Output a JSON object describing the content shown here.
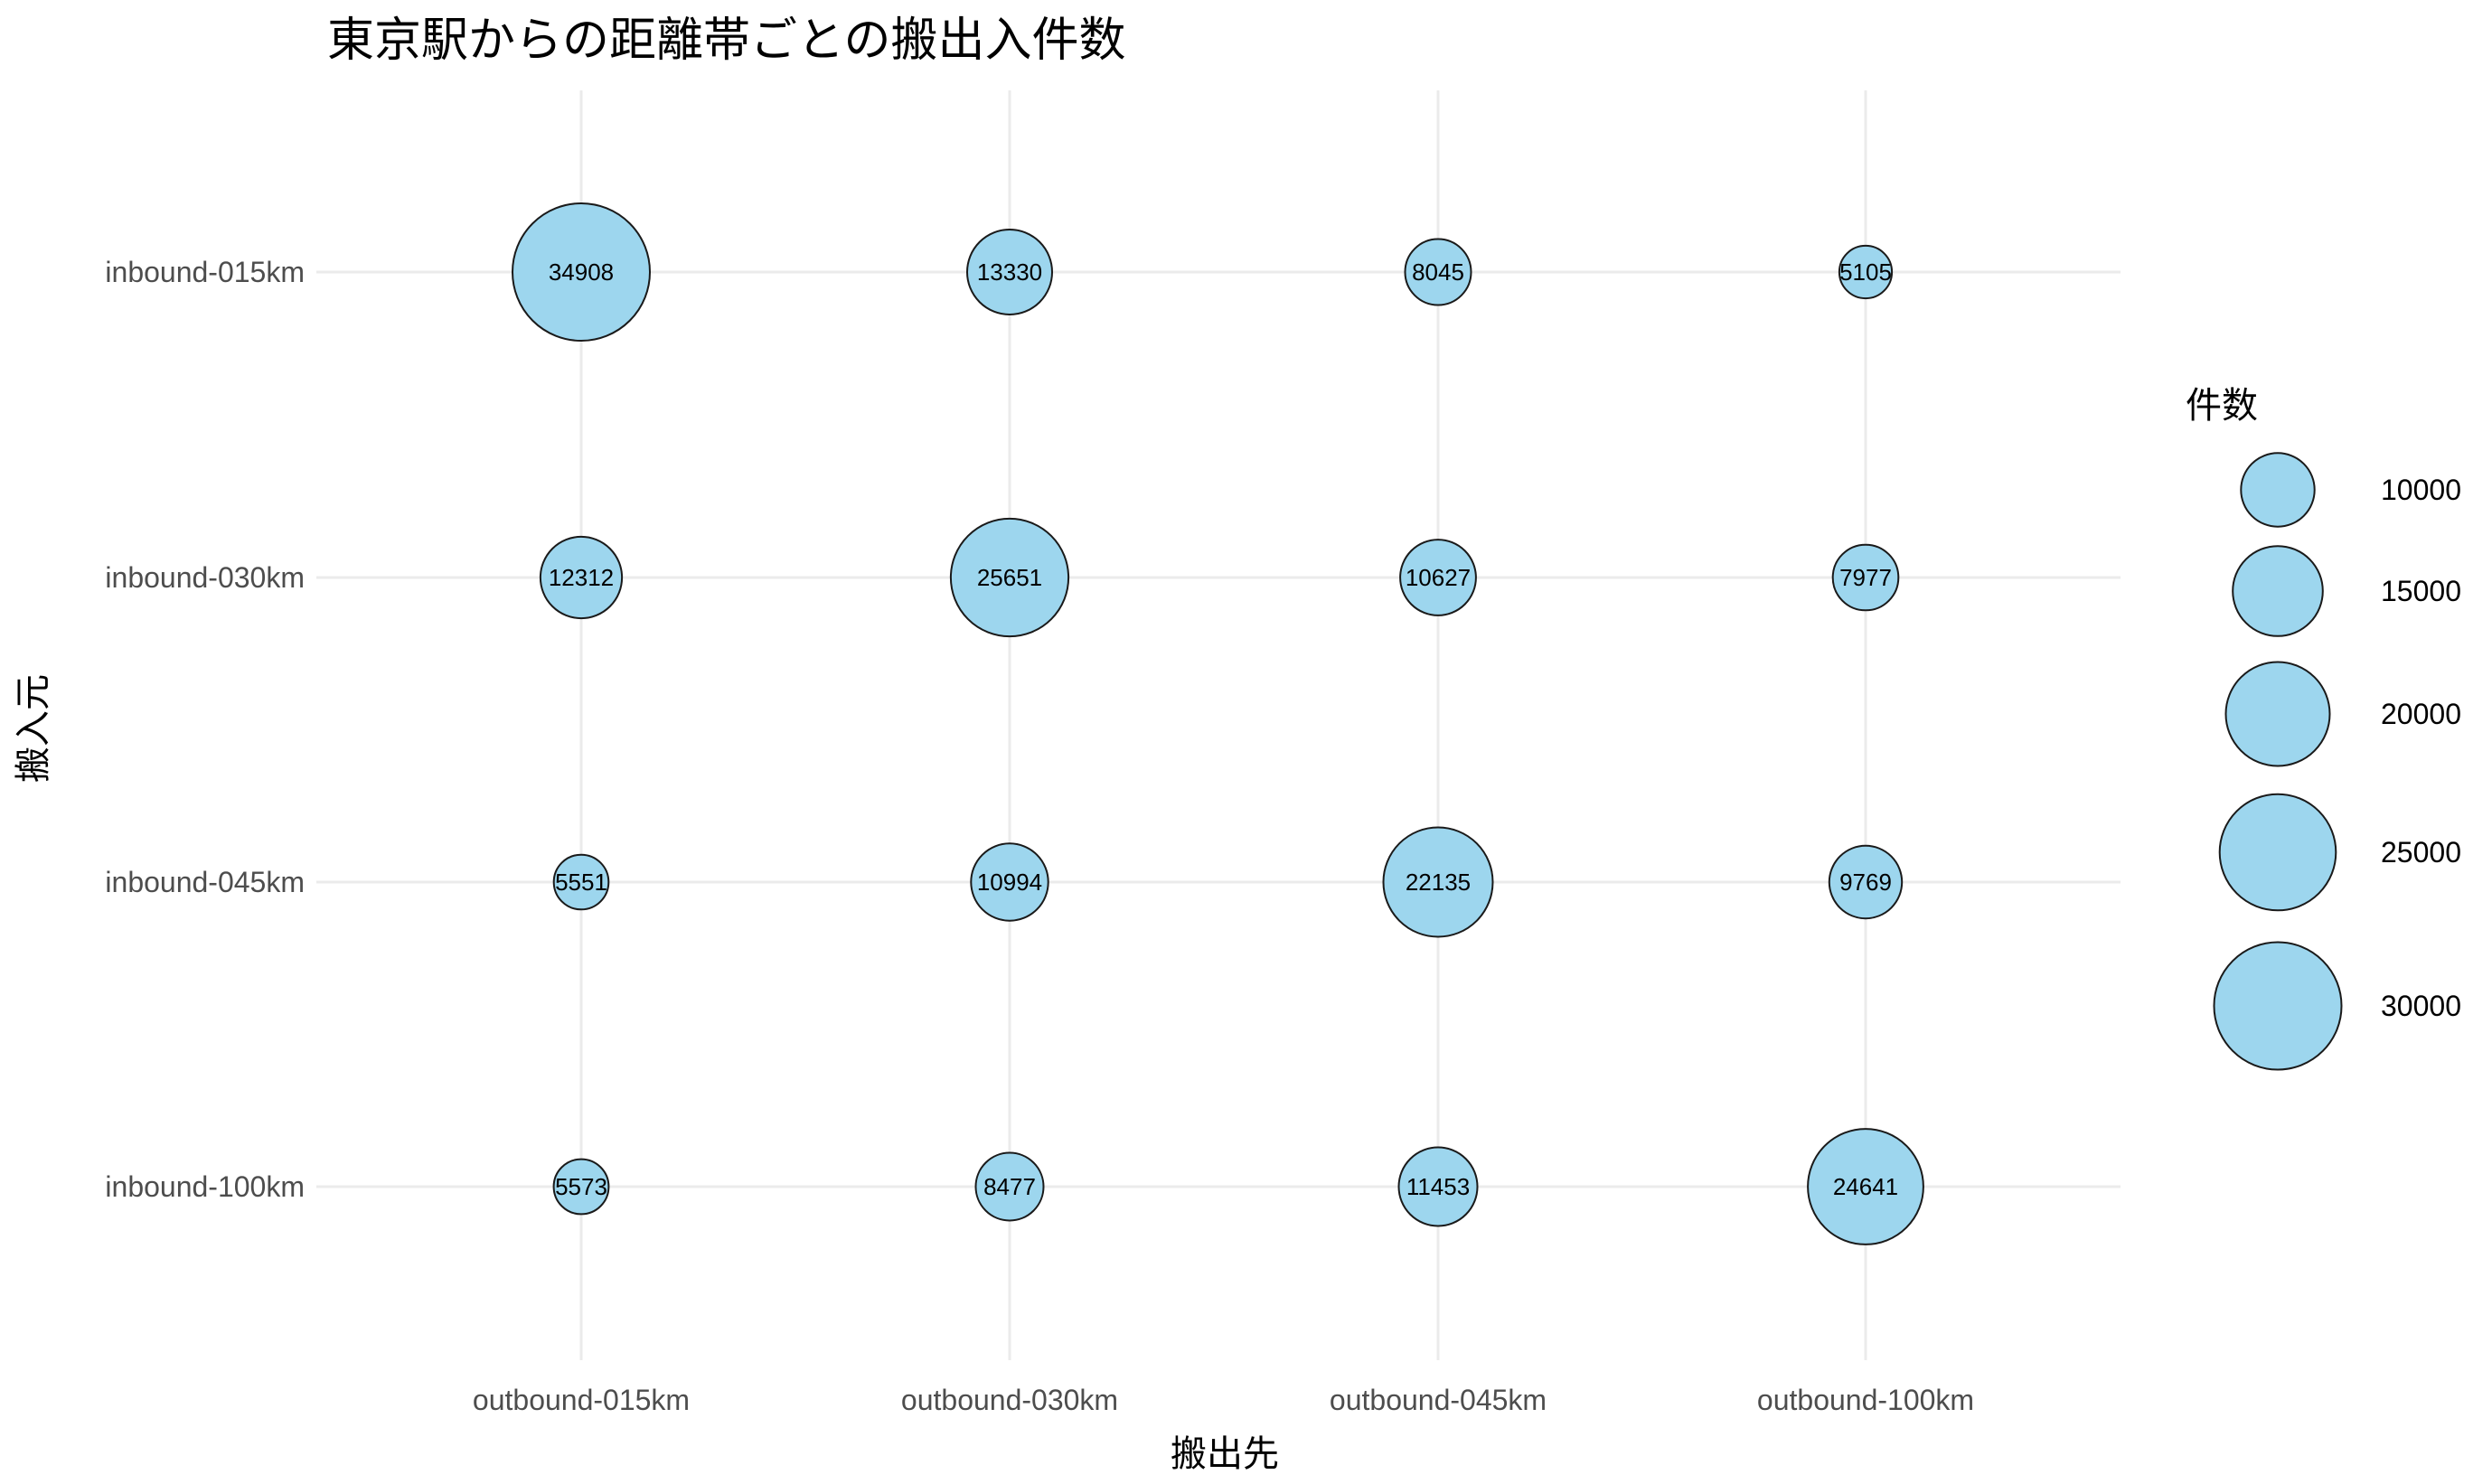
{
  "chart_data": {
    "type": "scatter",
    "subtype": "bubble-matrix",
    "title": "東京駅からの距離帯ごとの搬出入件数",
    "xlabel": "搬出先",
    "ylabel": "搬入元",
    "x_categories": [
      "outbound-015km",
      "outbound-030km",
      "outbound-045km",
      "outbound-100km"
    ],
    "y_categories": [
      "inbound-015km",
      "inbound-030km",
      "inbound-045km",
      "inbound-100km"
    ],
    "points": [
      {
        "x": "outbound-015km",
        "y": "inbound-015km",
        "value": 34908
      },
      {
        "x": "outbound-030km",
        "y": "inbound-015km",
        "value": 13330
      },
      {
        "x": "outbound-045km",
        "y": "inbound-015km",
        "value": 8045
      },
      {
        "x": "outbound-100km",
        "y": "inbound-015km",
        "value": 5105
      },
      {
        "x": "outbound-015km",
        "y": "inbound-030km",
        "value": 12312
      },
      {
        "x": "outbound-030km",
        "y": "inbound-030km",
        "value": 25651
      },
      {
        "x": "outbound-045km",
        "y": "inbound-030km",
        "value": 10627
      },
      {
        "x": "outbound-100km",
        "y": "inbound-030km",
        "value": 7977
      },
      {
        "x": "outbound-015km",
        "y": "inbound-045km",
        "value": 5551
      },
      {
        "x": "outbound-030km",
        "y": "inbound-045km",
        "value": 10994
      },
      {
        "x": "outbound-045km",
        "y": "inbound-045km",
        "value": 22135
      },
      {
        "x": "outbound-100km",
        "y": "inbound-045km",
        "value": 9769
      },
      {
        "x": "outbound-015km",
        "y": "inbound-100km",
        "value": 5573
      },
      {
        "x": "outbound-030km",
        "y": "inbound-100km",
        "value": 8477
      },
      {
        "x": "outbound-045km",
        "y": "inbound-100km",
        "value": 11453
      },
      {
        "x": "outbound-100km",
        "y": "inbound-100km",
        "value": 24641
      }
    ],
    "size_legend": {
      "title": "件数",
      "breaks": [
        10000,
        15000,
        20000,
        25000,
        30000
      ],
      "labels": [
        "10000",
        "15000",
        "20000",
        "25000",
        "30000"
      ],
      "position": "right"
    },
    "bubble_fill": "#9dd6ee",
    "bubble_stroke": "#1a1a1a",
    "grid": true
  }
}
